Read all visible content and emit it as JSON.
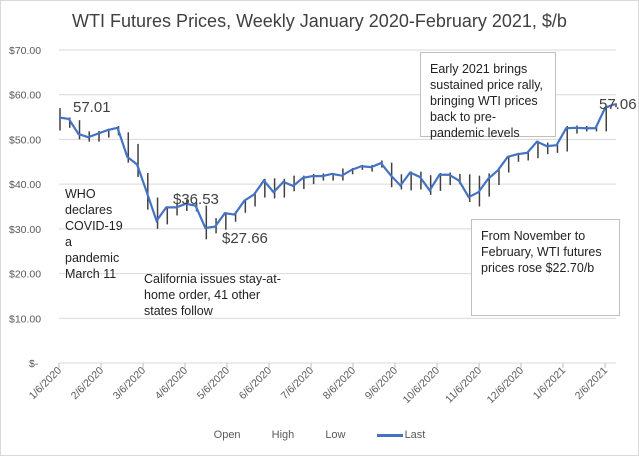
{
  "chart_data": {
    "type": "stock",
    "title": "WTI Futures Prices, Weekly January 2020-February 2021, $/b",
    "ylim": [
      0,
      70
    ],
    "y_ticks": [
      "$-",
      "$10.00",
      "$20.00",
      "$30.00",
      "$40.00",
      "$50.00",
      "$60.00",
      "$70.00"
    ],
    "x_ticks": [
      "1/6/2020",
      "2/6/2020",
      "3/6/2020",
      "4/6/2020",
      "5/6/2020",
      "6/6/2020",
      "7/6/2020",
      "8/6/2020",
      "9/6/2020",
      "10/6/2020",
      "11/6/2020",
      "12/6/2020",
      "1/6/2021",
      "2/6/2021"
    ],
    "legend": [
      "Open",
      "High",
      "Low",
      "Last"
    ],
    "legend_position": "bottom",
    "series_color": "#4472c4",
    "last": [
      54.9,
      54.6,
      51.2,
      50.5,
      51.3,
      52.1,
      52.6,
      46.1,
      44.4,
      38.2,
      31.8,
      34.8,
      34.8,
      35.6,
      35.2,
      30.2,
      30.5,
      33.5,
      33.2,
      36.3,
      37.7,
      40.8,
      38.2,
      40.5,
      39.6,
      41.4,
      41.8,
      41.8,
      42.3,
      41.9,
      43.2,
      44.0,
      43.8,
      44.7,
      42.0,
      39.7,
      42.6,
      41.6,
      38.6,
      42.1,
      42.1,
      40.8,
      37.1,
      38.2,
      41.2,
      43.1,
      46.1,
      46.7,
      47.0,
      49.5,
      48.5,
      48.7,
      52.5,
      52.6,
      52.5,
      52.5,
      57.1,
      57.9
    ],
    "high": [
      57.0,
      54.9,
      54.3,
      51.8,
      51.9,
      52.4,
      53.0,
      51.6,
      49.0,
      42.5,
      37.0,
      34.9,
      35.8,
      36.5,
      35.9,
      35.2,
      32.4,
      33.7,
      33.9,
      36.6,
      38.2,
      41.2,
      41.3,
      41.2,
      41.9,
      41.9,
      42.3,
      42.4,
      42.5,
      43.5,
      43.6,
      44.3,
      44.3,
      45.3,
      44.8,
      42.2,
      42.8,
      42.8,
      42.0,
      42.5,
      42.6,
      42.3,
      42.2,
      41.9,
      42.4,
      43.4,
      46.3,
      47.0,
      47.3,
      49.7,
      49.3,
      49.3,
      53.0,
      53.1,
      53.0,
      53.1,
      57.3,
      58.1
    ],
    "low": [
      52.0,
      52.6,
      50.0,
      49.5,
      49.5,
      50.4,
      50.9,
      44.8,
      41.6,
      34.3,
      30.0,
      31.0,
      33.0,
      34.0,
      33.9,
      27.66,
      29.0,
      29.8,
      31.6,
      33.6,
      35.0,
      37.0,
      36.8,
      37.0,
      38.4,
      38.9,
      40.0,
      40.8,
      40.8,
      40.8,
      42.2,
      43.2,
      42.8,
      43.7,
      39.3,
      38.8,
      38.6,
      38.8,
      37.6,
      38.5,
      39.8,
      40.0,
      36.0,
      35.0,
      37.2,
      39.8,
      42.6,
      45.0,
      45.3,
      45.8,
      46.7,
      47.0,
      47.3,
      51.3,
      51.8,
      51.8,
      51.8,
      57.2
    ]
  },
  "annotations": {
    "start_label": "57.01",
    "mid_high_label": "$36.53",
    "low_label": "$27.66",
    "end_label": "57.06",
    "who_note": [
      "WHO",
      "declares",
      "COVID-19",
      "a",
      "pandemic",
      "March 11"
    ],
    "california_note": [
      "California issues stay-at-",
      "home order, 41 other",
      "states follow"
    ],
    "rally_box": [
      "Early 2021 brings",
      "sustained price rally,",
      "bringing WTI prices",
      "back to pre-",
      "pandemic levels"
    ],
    "nov_feb_box": [
      "From November  to",
      "February, WTI futures",
      "prices rose $22.70/b"
    ]
  }
}
